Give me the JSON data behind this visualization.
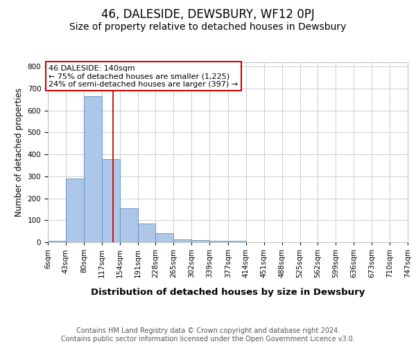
{
  "title": "46, DALESIDE, DEWSBURY, WF12 0PJ",
  "subtitle": "Size of property relative to detached houses in Dewsbury",
  "xlabel": "Distribution of detached houses by size in Dewsbury",
  "ylabel": "Number of detached properties",
  "bin_edges": [
    6,
    43,
    80,
    117,
    154,
    191,
    228,
    265,
    302,
    339,
    377,
    414,
    451,
    488,
    525,
    562,
    599,
    636,
    673,
    710,
    747
  ],
  "bar_heights": [
    6,
    290,
    665,
    380,
    155,
    85,
    40,
    12,
    10,
    7,
    5,
    0,
    0,
    0,
    0,
    0,
    0,
    0,
    0,
    0
  ],
  "bar_color": "#aec6e8",
  "bar_edgecolor": "#5a8fc0",
  "red_line_x": 140,
  "annotation_line1": "46 DALESIDE: 140sqm",
  "annotation_line2": "← 75% of detached houses are smaller (1,225)",
  "annotation_line3": "24% of semi-detached houses are larger (397) →",
  "annotation_box_color": "#ffffff",
  "annotation_box_edgecolor": "#cc0000",
  "ylim": [
    0,
    820
  ],
  "yticks": [
    0,
    100,
    200,
    300,
    400,
    500,
    600,
    700,
    800
  ],
  "grid_color": "#cccccc",
  "background_color": "#ffffff",
  "footer_line1": "Contains HM Land Registry data © Crown copyright and database right 2024.",
  "footer_line2": "Contains public sector information licensed under the Open Government Licence v3.0.",
  "title_fontsize": 12,
  "subtitle_fontsize": 10,
  "xlabel_fontsize": 9.5,
  "ylabel_fontsize": 8.5,
  "tick_fontsize": 7.5,
  "annotation_fontsize": 8,
  "footer_fontsize": 7
}
